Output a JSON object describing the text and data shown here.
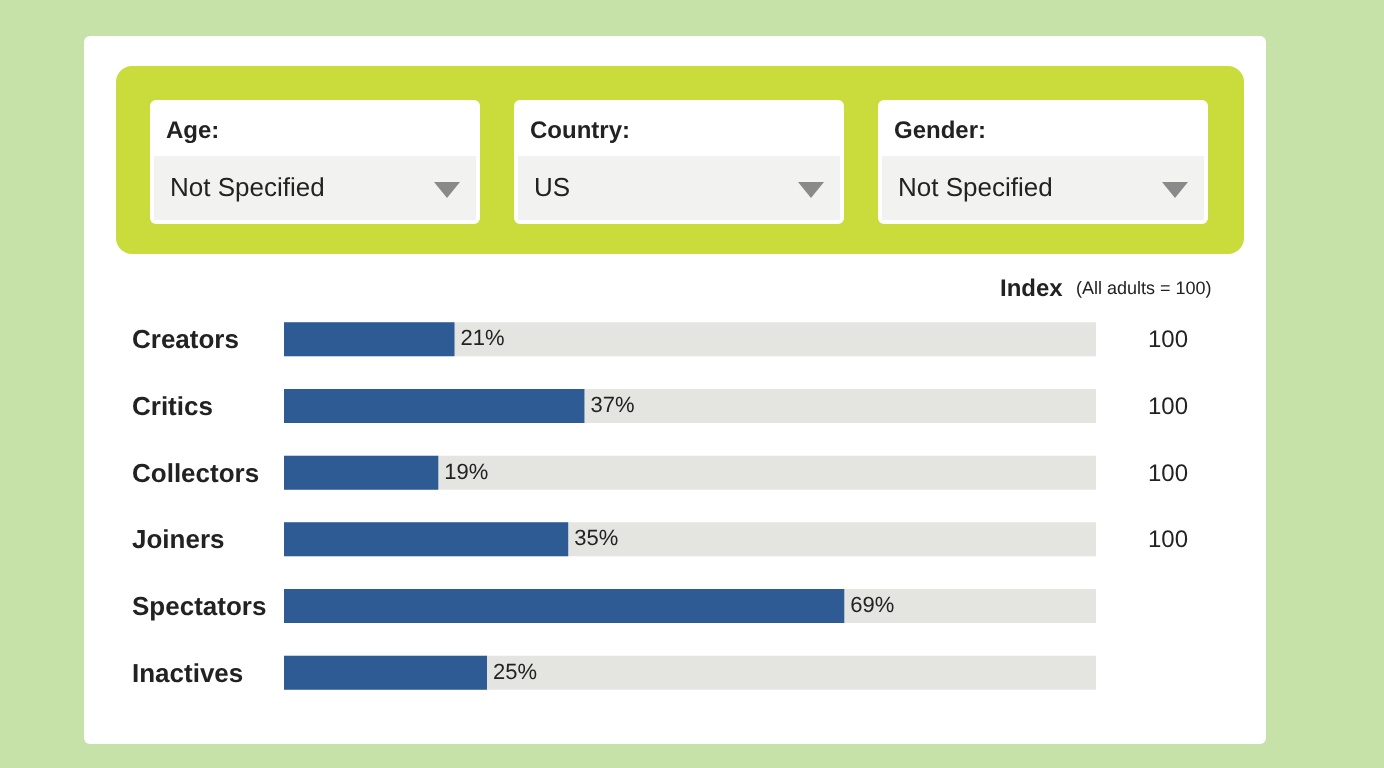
{
  "chart_data": {
    "type": "bar",
    "orientation": "horizontal",
    "categories": [
      "Creators",
      "Critics",
      "Collectors",
      "Joiners",
      "Spectators",
      "Inactives"
    ],
    "values": [
      21,
      37,
      19,
      35,
      69,
      25
    ],
    "value_labels": [
      "21%",
      "37%",
      "19%",
      "35%",
      "69%",
      "25%"
    ],
    "color": "#2e5b94",
    "xlim": [
      0,
      100
    ],
    "tick_labels": "y",
    "grid": false,
    "annotations": [
      "Age:",
      "Not Specified",
      "Country:",
      "US",
      "Gender:",
      "Not Specified",
      "Index",
      "(All adults = 100)",
      "100",
      "100",
      "100",
      "100"
    ]
  }
}
